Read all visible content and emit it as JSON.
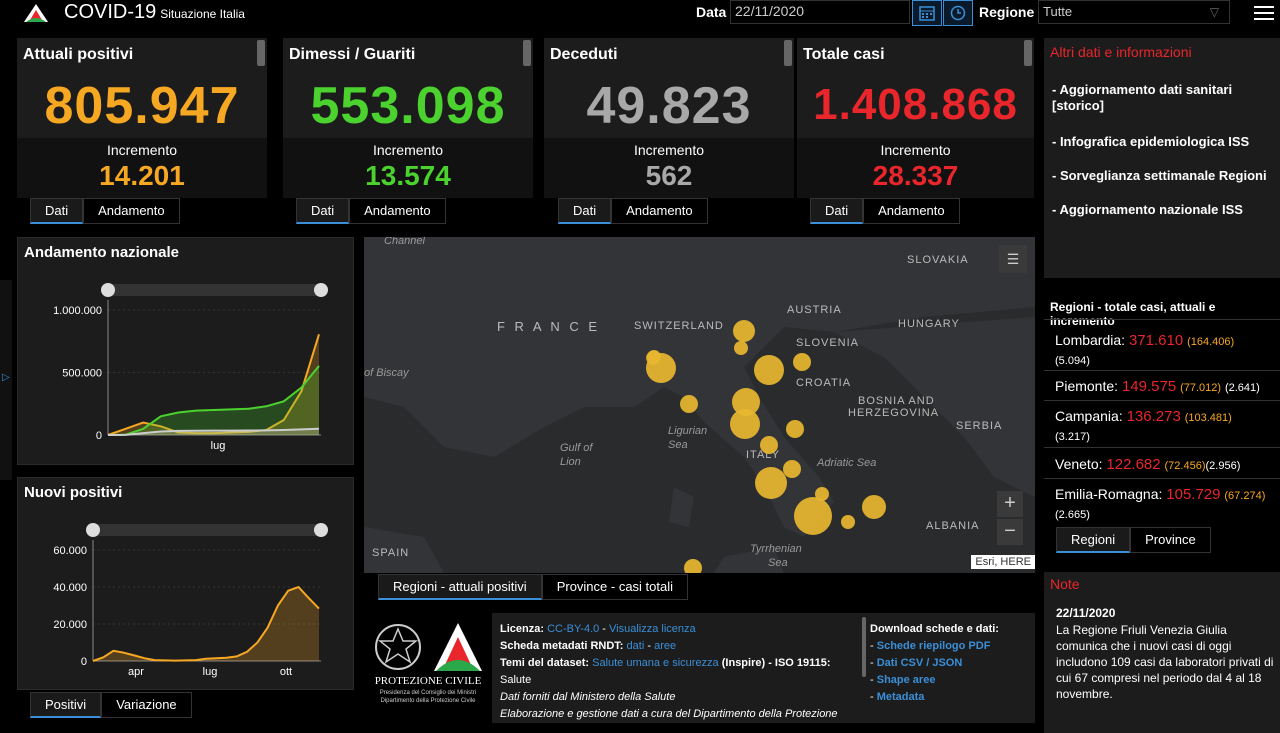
{
  "header": {
    "app_title": "COVID-19",
    "app_subtitle": "Situazione Italia",
    "date_label": "Data",
    "date_value": "22/11/2020",
    "region_label": "Regione",
    "region_value": "Tutte"
  },
  "cards": [
    {
      "title": "Attuali positivi",
      "value": "805.947",
      "inc_label": "Incremento",
      "inc_value": "14.201",
      "color": "#f7a823",
      "tabs": [
        "Dati",
        "Andamento"
      ]
    },
    {
      "title": "Dimessi / Guariti",
      "value": "553.098",
      "inc_label": "Incremento",
      "inc_value": "13.574",
      "color": "#4bd22f",
      "tabs": [
        "Dati",
        "Andamento"
      ]
    },
    {
      "title": "Deceduti",
      "value": "49.823",
      "inc_label": "Incremento",
      "inc_value": "562",
      "color": "#a8a8a8",
      "tabs": [
        "Dati",
        "Andamento"
      ]
    },
    {
      "title": "Totale casi",
      "value": "1.408.868",
      "inc_label": "Incremento",
      "inc_value": "28.337",
      "color": "#e8262b",
      "tabs": [
        "Dati",
        "Andamento"
      ]
    }
  ],
  "national_trend": {
    "title": "Andamento nazionale",
    "chart_data": {
      "type": "line",
      "title": "Andamento nazionale",
      "yticks": [
        "1.000.000",
        "500.000",
        "0"
      ],
      "xticks": [
        "lug"
      ],
      "ylim": [
        0,
        1000000
      ],
      "series": [
        {
          "color": "#f7a823",
          "values": [
            0,
            50000,
            100000,
            70000,
            20000,
            15000,
            15000,
            20000,
            25000,
            40000,
            120000,
            350000,
            805947
          ]
        },
        {
          "color": "#4bd22f",
          "values": [
            0,
            2000,
            50000,
            150000,
            180000,
            195000,
            200000,
            205000,
            210000,
            230000,
            270000,
            380000,
            553098
          ]
        },
        {
          "color": "#cccccc",
          "values": [
            0,
            1000,
            15000,
            28000,
            33000,
            34000,
            35000,
            35500,
            36000,
            37000,
            40000,
            45000,
            49823
          ]
        }
      ]
    }
  },
  "new_positives": {
    "title": "Nuovi positivi",
    "chart_data": {
      "type": "area",
      "title": "Nuovi positivi",
      "yticks": [
        "60.000",
        "40.000",
        "20.000",
        "0"
      ],
      "xticks": [
        "apr",
        "lug",
        "ott"
      ],
      "ylim": [
        0,
        60000
      ],
      "values": [
        0,
        2000,
        5500,
        4500,
        3000,
        1500,
        500,
        300,
        200,
        300,
        500,
        1200,
        1500,
        1800,
        2500,
        5000,
        10000,
        18000,
        30000,
        38000,
        40000,
        34000,
        28337
      ]
    },
    "tabs": [
      "Positivi",
      "Variazione"
    ]
  },
  "map": {
    "labels": [
      {
        "text": "SLOVAKIA"
      },
      {
        "text": "AUSTRIA"
      },
      {
        "text": "HUNGARY"
      },
      {
        "text": "F R A N C E"
      },
      {
        "text": "SWITZERLAND"
      },
      {
        "text": "SLOVENIA"
      },
      {
        "text": "CROATIA"
      },
      {
        "text": "BOSNIA AND"
      },
      {
        "text": "HERZEGOVINA"
      },
      {
        "text": "SERBIA"
      },
      {
        "text": "ITALY"
      },
      {
        "text": "ALBANIA"
      },
      {
        "text": "SPAIN"
      },
      {
        "text": "of Biscay"
      },
      {
        "text": "Ligurian"
      },
      {
        "text": "Sea"
      },
      {
        "text": "Gulf of"
      },
      {
        "text": "Lion"
      },
      {
        "text": "Adriatic Sea"
      },
      {
        "text": "Tyrrhenian"
      },
      {
        "text": "Sea"
      },
      {
        "text": "Channel"
      }
    ],
    "attribution": "Esri, HERE",
    "tabs": [
      "Regioni - attuali positivi",
      "Province - casi totali"
    ]
  },
  "other_data": {
    "title": "Altri dati e informazioni",
    "links": [
      "- Aggiornamento dati sanitari [storico]",
      "- Infografica epidemiologica ISS",
      "- Sorveglianza settimanale Regioni",
      "- Aggiornamento nazionale ISS"
    ]
  },
  "regions": {
    "title": "Regioni - totale casi, attuali e incremento",
    "items": [
      {
        "name": "Lombardia:",
        "total": "371.610",
        "current": "(164.406)",
        "increment": "(5.094)"
      },
      {
        "name": "Piemonte:",
        "total": "149.575",
        "current": "(77.012)",
        "increment": "(2.641)"
      },
      {
        "name": "Campania:",
        "total": "136.273",
        "current": "(103.481)",
        "increment": "(3.217)"
      },
      {
        "name": "Veneto:",
        "total": "122.682",
        "current": "(72.456)",
        "increment": "(2.956)"
      },
      {
        "name": "Emilia-Romagna:",
        "total": "105.729",
        "current": "(67.274)",
        "increment": "(2.665)"
      }
    ],
    "tabs": [
      "Regioni",
      "Province"
    ]
  },
  "notes": {
    "title": "Note",
    "date": "22/11/2020",
    "text": "La Regione Friuli Venezia Giulia comunica che i nuovi casi di oggi includono 109 casi da laboratori privati di cui 67 compresi nel periodo dal 4 al 18 novembre."
  },
  "info": {
    "logo_title": "PROTEZIONE CIVILE",
    "logo_sub": "Presidenza del Consiglio dei Ministri Dipartimento della Protezione Civile",
    "license_label": "Licenza:",
    "license_value": "CC-BY-4.0",
    "license_link": "Visualizza licenza",
    "metadata_label": "Scheda metadati RNDT:",
    "metadata_link1": "dati",
    "metadata_link2": "aree",
    "themes_label": "Temi del dataset:",
    "themes_link": "Salute umana e sicurezza",
    "themes_rest": "(Inspire) - ISO 19115:",
    "themes_iso": "Salute",
    "source": "Dati forniti dal Ministero della Salute",
    "elaboration": "Elaborazione e gestione dati a cura del Dipartimento della Protezione",
    "downloads_title": "Download schede e dati:",
    "downloads": [
      "Schede riepilogo PDF",
      "Dati CSV / JSON",
      "Shape aree",
      "Metadata"
    ]
  }
}
